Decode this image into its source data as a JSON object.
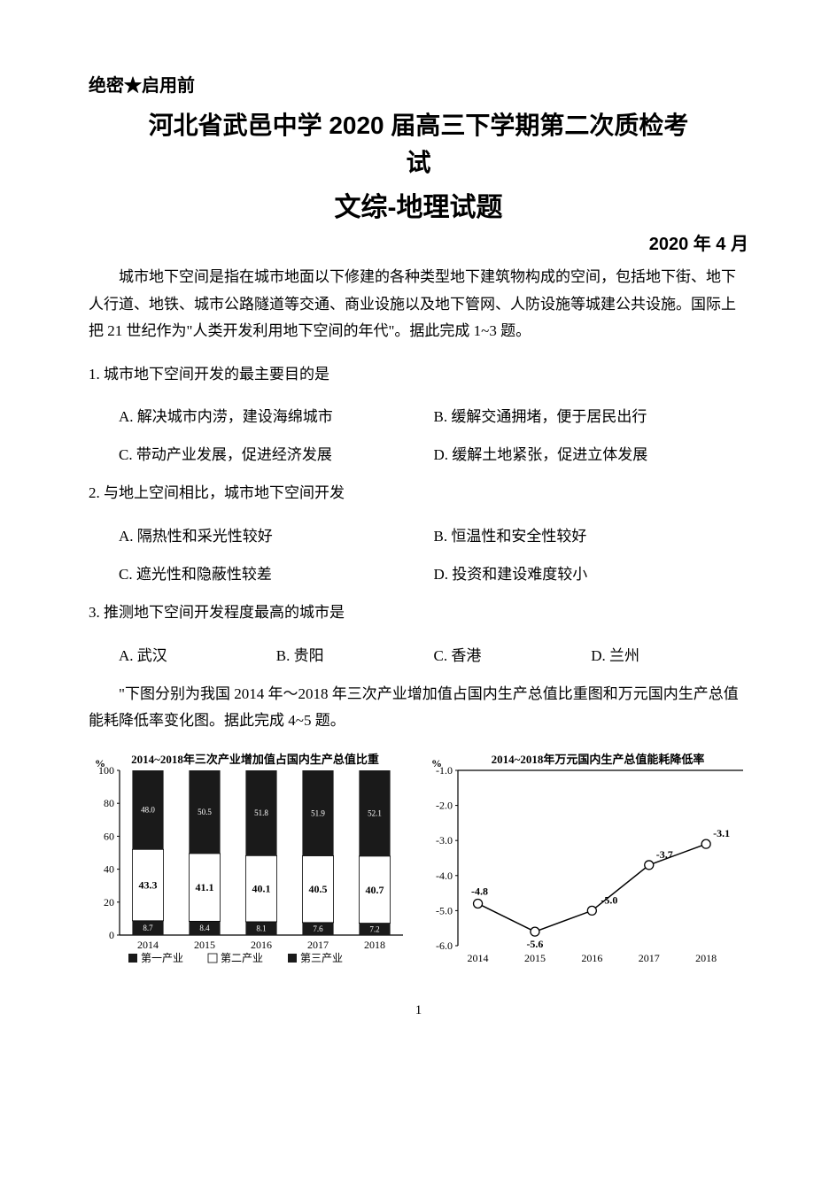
{
  "header": {
    "confidential": "绝密★启用前",
    "title_line1": "河北省武邑中学 2020 届高三下学期第二次质检考",
    "title_line2": "试",
    "subtitle": "文综-地理试题",
    "date": "2020 年 4 月"
  },
  "intro1": "城市地下空间是指在城市地面以下修建的各种类型地下建筑物构成的空间，包括地下街、地下人行道、地铁、城市公路隧道等交通、商业设施以及地下管网、人防设施等城建公共设施。国际上把 21 世纪作为\"人类开发利用地下空间的年代\"。据此完成 1~3 题。",
  "q1": {
    "stem": "1. 城市地下空间开发的最主要目的是",
    "A": "A. 解决城市内涝，建设海绵城市",
    "B": "B. 缓解交通拥堵，便于居民出行",
    "C": "C. 带动产业发展，促进经济发展",
    "D": "D. 缓解土地紧张，促进立体发展"
  },
  "q2": {
    "stem": "2. 与地上空间相比，城市地下空间开发",
    "A": "A. 隔热性和采光性较好",
    "B": "B. 恒温性和安全性较好",
    "C": "C. 遮光性和隐蔽性较差",
    "D": "D. 投资和建设难度较小"
  },
  "q3": {
    "stem": "3. 推测地下空间开发程度最高的城市是",
    "A": "A. 武汉",
    "B": "B. 贵阳",
    "C": "C. 香港",
    "D": "D. 兰州"
  },
  "intro2": "\"下图分别为我国 2014 年～2018 年三次产业增加值占国内生产总值比重图和万元国内生产总值能耗降低率变化图。据此完成 4~5 题。",
  "chart1": {
    "type": "stacked-bar",
    "title": "2014~2018年三次产业增加值占国内生产总值比重",
    "y_unit": "%",
    "ylim": [
      0,
      100
    ],
    "ytick_step": 20,
    "yticks": [
      "0",
      "20",
      "40",
      "60",
      "80",
      "100"
    ],
    "years": [
      "2014",
      "2015",
      "2016",
      "2017",
      "2018"
    ],
    "series": {
      "primary": {
        "label": "第一产业",
        "color": "#1a1a1a",
        "values": [
          8.7,
          8.4,
          8.1,
          7.6,
          7.2
        ]
      },
      "secondary": {
        "label": "第二产业",
        "color": "#ffffff",
        "values": [
          43.3,
          41.1,
          40.1,
          40.5,
          40.7
        ],
        "text_color": "#000000"
      },
      "tertiary": {
        "label": "第三产业",
        "color": "#1a1a1a",
        "values": [
          48.0,
          50.5,
          51.8,
          51.9,
          52.1
        ]
      }
    },
    "bar_width_ratio": 0.55,
    "axis_color": "#000000",
    "label_fontsize": 11,
    "value_labels": {
      "primary": [
        "8.7",
        "8.4",
        "8.1",
        "7.6",
        "7.2"
      ],
      "secondary": [
        "43.3",
        "41.1",
        "40.1",
        "40.5",
        "40.7"
      ],
      "tertiary": [
        "48.0",
        "50.5",
        "51.8",
        "51.9",
        "52.1"
      ]
    },
    "legend_items": [
      "第一产业",
      "第二产业",
      "第三产业"
    ]
  },
  "chart2": {
    "type": "line",
    "title": "2014~2018年万元国内生产总值能耗降低率",
    "y_unit": "%",
    "ylim": [
      -6.0,
      -1.0
    ],
    "ytick_step": 1.0,
    "yticks": [
      "-1.0",
      "-2.0",
      "-3.0",
      "-4.0",
      "-5.0",
      "-6.0"
    ],
    "years": [
      "2014",
      "2015",
      "2016",
      "2017",
      "2018"
    ],
    "values": [
      -4.8,
      -5.6,
      -5.0,
      -3.7,
      -3.1
    ],
    "point_labels": [
      "-4.8",
      "-5.6",
      "-5.0",
      "-3.7",
      "-3.1"
    ],
    "line_color": "#000000",
    "marker": "circle-open",
    "marker_size": 5,
    "line_width": 1.5,
    "axis_color": "#000000",
    "label_fontsize": 11
  },
  "page_number": "1",
  "colors": {
    "text": "#000000",
    "bg": "#ffffff"
  }
}
